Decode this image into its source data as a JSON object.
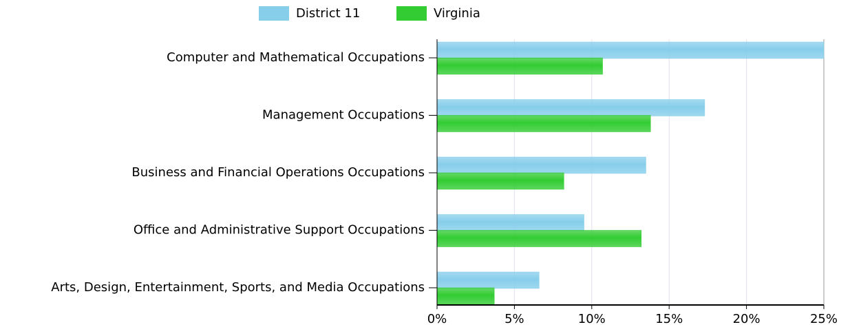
{
  "chart_data": {
    "type": "bar",
    "orientation": "horizontal",
    "categories": [
      "Computer and Mathematical Occupations",
      "Management Occupations",
      "Business and Financial Operations Occupations",
      "Office and Administrative Support Occupations",
      "Arts, Design, Entertainment, Sports, and Media Occupations"
    ],
    "series": [
      {
        "name": "District 11",
        "color": "#87ceeb",
        "values": [
          25.0,
          17.3,
          13.5,
          9.5,
          6.6
        ]
      },
      {
        "name": "Virginia",
        "color": "#33cc33",
        "values": [
          10.7,
          13.8,
          8.2,
          13.2,
          3.7
        ]
      }
    ],
    "xlim": [
      0,
      25
    ],
    "xticks": [
      {
        "value": 0,
        "label": "0%"
      },
      {
        "value": 5,
        "label": "5%"
      },
      {
        "value": 10,
        "label": "10%"
      },
      {
        "value": 15,
        "label": "15%"
      },
      {
        "value": 20,
        "label": "20%"
      },
      {
        "value": 25,
        "label": "25%"
      }
    ],
    "grid": true,
    "legend": "top"
  }
}
